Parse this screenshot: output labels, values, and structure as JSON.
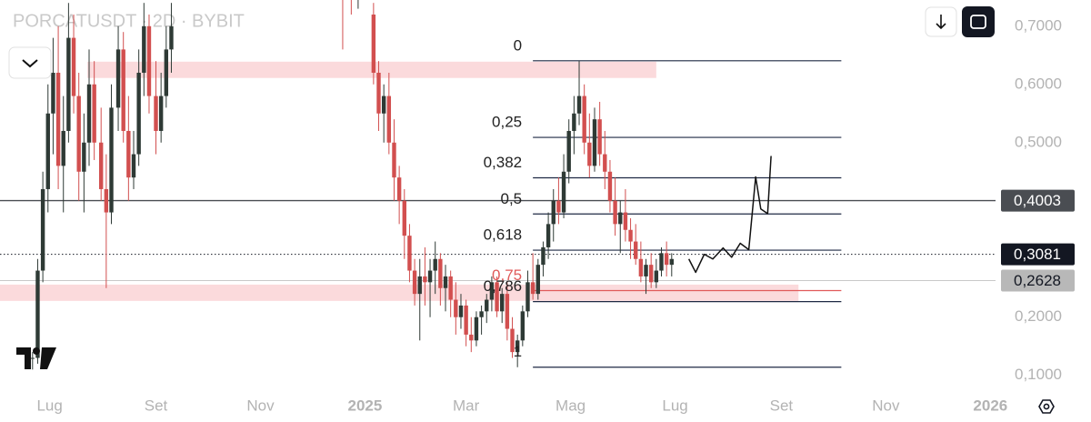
{
  "chart_data": {
    "type": "candlestick",
    "title": "PORCATUSDT · 2D · BYBIT",
    "xlim": [
      -29,
      552
    ],
    "ylim": [
      0.073,
      0.745
    ],
    "xticks": [
      {
        "value": 0,
        "label": "Lug"
      },
      {
        "value": 62,
        "label": "Set"
      },
      {
        "value": 123,
        "label": "Nov"
      },
      {
        "value": 184,
        "label": "2025"
      },
      {
        "value": 243,
        "label": "Mar"
      },
      {
        "value": 304,
        "label": "Mag"
      },
      {
        "value": 365,
        "label": "Lug"
      },
      {
        "value": 427,
        "label": "Set"
      },
      {
        "value": 488,
        "label": "Nov"
      },
      {
        "value": 549,
        "label": "2026"
      }
    ],
    "yticks": [
      {
        "value": 0.1,
        "label": "0,1000"
      },
      {
        "value": 0.2,
        "label": "0,2000"
      },
      {
        "value": 0.3,
        "label": "0,3000"
      },
      {
        "value": 0.4,
        "label": "0,4000"
      },
      {
        "value": 0.5,
        "label": "0,5000"
      },
      {
        "value": 0.6,
        "label": "0,6000"
      },
      {
        "value": 0.7,
        "label": "0,7000"
      }
    ],
    "grid": false,
    "up_color": "#2e3a35",
    "down_color": "#d24f4f",
    "x": [
      -10,
      -7,
      -4,
      -1,
      2,
      5,
      8,
      11,
      14,
      17,
      20,
      23,
      26,
      30,
      33,
      36,
      40,
      43,
      46,
      49,
      52,
      55,
      58,
      62,
      65,
      68,
      71,
      171,
      176,
      180,
      189,
      192,
      195,
      198,
      201,
      204,
      207,
      210,
      213,
      216,
      219,
      222,
      225,
      228,
      231,
      234,
      237,
      240,
      243,
      246,
      249,
      252,
      255,
      258,
      261,
      264,
      267,
      270,
      273,
      276,
      279,
      282,
      285,
      288,
      291,
      294,
      297,
      300,
      303,
      306,
      309,
      312,
      315,
      318,
      321,
      324,
      327,
      330,
      333,
      336,
      339,
      342,
      345,
      348,
      351,
      354,
      357,
      360,
      363
    ],
    "open": [
      0.13,
      0.13,
      0.28,
      0.42,
      0.55,
      0.62,
      0.46,
      0.52,
      0.68,
      0.58,
      0.45,
      0.5,
      0.6,
      0.5,
      0.42,
      0.38,
      0.56,
      0.66,
      0.52,
      0.44,
      0.48,
      0.62,
      0.7,
      0.58,
      0.52,
      0.58,
      0.66,
      0.8,
      0.78,
      0.76,
      0.72,
      0.62,
      0.55,
      0.58,
      0.5,
      0.44,
      0.4,
      0.34,
      0.28,
      0.24,
      0.27,
      0.26,
      0.28,
      0.3,
      0.25,
      0.27,
      0.23,
      0.2,
      0.22,
      0.17,
      0.16,
      0.2,
      0.21,
      0.23,
      0.26,
      0.21,
      0.24,
      0.18,
      0.14,
      0.16,
      0.21,
      0.26,
      0.24,
      0.29,
      0.32,
      0.36,
      0.4,
      0.38,
      0.45,
      0.52,
      0.55,
      0.58,
      0.5,
      0.46,
      0.54,
      0.48,
      0.45,
      0.4,
      0.36,
      0.38,
      0.35,
      0.33,
      0.3,
      0.27,
      0.29,
      0.26,
      0.28,
      0.31,
      0.29
    ],
    "high": [
      0.14,
      0.3,
      0.45,
      0.6,
      0.68,
      0.7,
      0.58,
      0.74,
      0.72,
      0.62,
      0.55,
      0.66,
      0.64,
      0.56,
      0.48,
      0.6,
      0.7,
      0.69,
      0.58,
      0.52,
      0.66,
      0.74,
      0.72,
      0.64,
      0.62,
      0.7,
      0.74,
      0.82,
      0.8,
      0.79,
      0.74,
      0.64,
      0.6,
      0.62,
      0.54,
      0.46,
      0.42,
      0.36,
      0.3,
      0.3,
      0.32,
      0.3,
      0.33,
      0.31,
      0.29,
      0.28,
      0.26,
      0.24,
      0.23,
      0.2,
      0.21,
      0.22,
      0.24,
      0.27,
      0.27,
      0.25,
      0.26,
      0.2,
      0.17,
      0.22,
      0.28,
      0.31,
      0.3,
      0.33,
      0.38,
      0.42,
      0.44,
      0.48,
      0.54,
      0.58,
      0.6406,
      0.6,
      0.55,
      0.56,
      0.57,
      0.52,
      0.47,
      0.44,
      0.4,
      0.42,
      0.37,
      0.36,
      0.33,
      0.3,
      0.31,
      0.3,
      0.32,
      0.33,
      0.31
    ],
    "low": [
      0.11,
      0.12,
      0.26,
      0.38,
      0.48,
      0.42,
      0.38,
      0.5,
      0.55,
      0.4,
      0.38,
      0.46,
      0.47,
      0.4,
      0.25,
      0.36,
      0.52,
      0.5,
      0.4,
      0.42,
      0.46,
      0.58,
      0.55,
      0.48,
      0.5,
      0.56,
      0.62,
      0.66,
      0.72,
      0.73,
      0.6,
      0.52,
      0.5,
      0.48,
      0.4,
      0.36,
      0.3,
      0.26,
      0.22,
      0.16,
      0.22,
      0.2,
      0.24,
      0.22,
      0.21,
      0.2,
      0.17,
      0.18,
      0.15,
      0.14,
      0.15,
      0.17,
      0.19,
      0.21,
      0.2,
      0.19,
      0.16,
      0.13,
      0.114,
      0.15,
      0.2,
      0.23,
      0.23,
      0.27,
      0.3,
      0.33,
      0.36,
      0.37,
      0.43,
      0.48,
      0.53,
      0.48,
      0.44,
      0.45,
      0.46,
      0.42,
      0.38,
      0.34,
      0.31,
      0.33,
      0.3,
      0.29,
      0.26,
      0.24,
      0.25,
      0.25,
      0.27,
      0.27,
      0.27
    ],
    "close": [
      0.13,
      0.28,
      0.42,
      0.55,
      0.62,
      0.46,
      0.52,
      0.68,
      0.58,
      0.45,
      0.5,
      0.6,
      0.5,
      0.42,
      0.38,
      0.56,
      0.66,
      0.52,
      0.44,
      0.48,
      0.62,
      0.7,
      0.58,
      0.52,
      0.58,
      0.66,
      0.7,
      0.78,
      0.76,
      0.77,
      0.62,
      0.55,
      0.58,
      0.5,
      0.44,
      0.4,
      0.34,
      0.28,
      0.24,
      0.27,
      0.26,
      0.28,
      0.3,
      0.25,
      0.27,
      0.23,
      0.2,
      0.22,
      0.17,
      0.16,
      0.2,
      0.21,
      0.23,
      0.26,
      0.21,
      0.24,
      0.18,
      0.14,
      0.16,
      0.21,
      0.26,
      0.24,
      0.29,
      0.32,
      0.36,
      0.4,
      0.38,
      0.45,
      0.52,
      0.55,
      0.58,
      0.5,
      0.46,
      0.54,
      0.48,
      0.45,
      0.4,
      0.36,
      0.38,
      0.35,
      0.33,
      0.3,
      0.27,
      0.29,
      0.26,
      0.28,
      0.31,
      0.29,
      0.3
    ],
    "zones": [
      {
        "x": [
          22,
          354
        ],
        "y": [
          0.611,
          0.639
        ],
        "color": "#fbdadc"
      },
      {
        "x": [
          -29,
          437
        ],
        "y": [
          0.228,
          0.256
        ],
        "color": "#fbdadc"
      }
    ],
    "fibonacci": {
      "high": 0.6406,
      "low": 0.114,
      "x": [
        282,
        462
      ],
      "color": "#1f2a44",
      "levels": [
        0,
        {
          "value": 0.25,
          "label": "0,25"
        },
        {
          "value": 0.382,
          "label": "0,382"
        },
        {
          "value": 0.5,
          "label": "0,5"
        },
        {
          "value": 0.618,
          "label": "0,618"
        },
        {
          "value": 0.75,
          "label": "0,75",
          "color": "#e05a5a"
        },
        {
          "value": 0.786,
          "label": "0,786"
        },
        1
      ]
    },
    "projection": {
      "x": [
        373,
        377,
        382,
        387,
        393,
        398,
        403,
        408,
        412,
        415,
        419,
        421
      ],
      "y": [
        0.3,
        0.277,
        0.308,
        0.3,
        0.319,
        0.303,
        0.327,
        0.316,
        0.441,
        0.386,
        0.378,
        0.477
      ],
      "color": "#111"
    },
    "price_labels": [
      {
        "value": 0.4003,
        "label": "0,4003",
        "color": "#4a4d52",
        "line": "solid"
      },
      {
        "value": 0.3081,
        "label": "0,3081",
        "color": "#131722",
        "line": "dotted"
      },
      {
        "value": 0.2628,
        "label": "0,2628",
        "color": "#b8b8b8",
        "line": "light"
      }
    ]
  }
}
